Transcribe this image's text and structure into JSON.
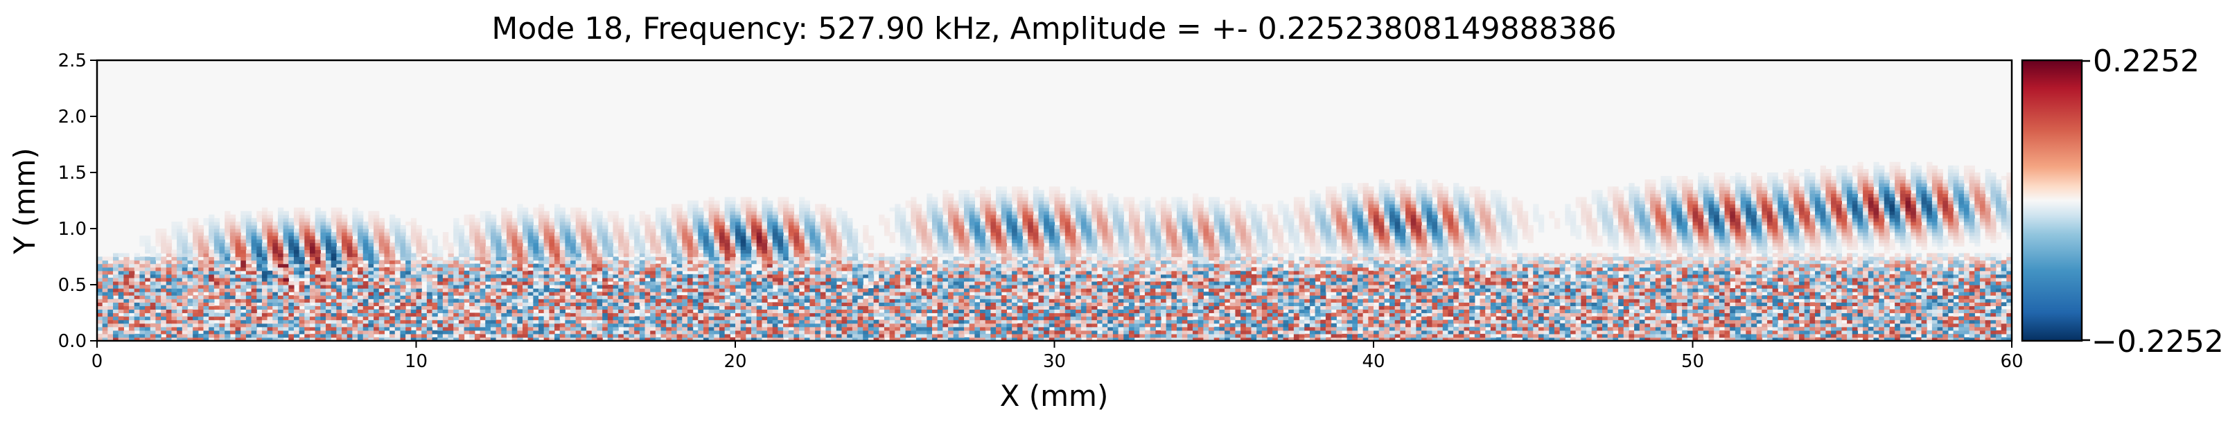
{
  "chart_data": {
    "type": "heatmap",
    "title": "Mode 18, Frequency: 527.90 kHz, Amplitude = +- 0.22523808149888386",
    "xlabel": "X (mm)",
    "ylabel": "Y (mm)",
    "xlim": [
      0,
      60
    ],
    "ylim": [
      0,
      2.5
    ],
    "x_ticks": [
      0,
      10,
      20,
      30,
      40,
      50,
      60
    ],
    "x_tick_labels": [
      "0",
      "10",
      "20",
      "30",
      "40",
      "50",
      "60"
    ],
    "y_ticks": [
      0.0,
      0.5,
      1.0,
      1.5,
      2.0,
      2.5
    ],
    "y_tick_labels": [
      "0.0",
      "0.5",
      "1.0",
      "1.5",
      "2.0",
      "2.5"
    ],
    "colormap": "RdBu_r",
    "colors": {
      "max": "#67001f",
      "high": "#d6604d",
      "mid": "#f7f7f7",
      "low": "#4393c3",
      "min": "#053061"
    },
    "colorbar": {
      "vmin": -0.2252,
      "vmax": 0.2252,
      "tick_labels": [
        "0.2252",
        "−0.2252"
      ]
    },
    "field": {
      "noise_layer_top_y": 0.6,
      "wave_packets": [
        {
          "x_center": 6.5,
          "y_center": 0.8,
          "half_width": 3.0,
          "amplitude": 0.2
        },
        {
          "x_center": 14.0,
          "y_center": 0.85,
          "half_width": 2.5,
          "amplitude": 0.12
        },
        {
          "x_center": 20.5,
          "y_center": 0.9,
          "half_width": 2.5,
          "amplitude": 0.2
        },
        {
          "x_center": 29.0,
          "y_center": 1.0,
          "half_width": 3.0,
          "amplitude": 0.16
        },
        {
          "x_center": 34.5,
          "y_center": 0.95,
          "half_width": 2.0,
          "amplitude": 0.1
        },
        {
          "x_center": 41.0,
          "y_center": 1.05,
          "half_width": 2.5,
          "amplitude": 0.18
        },
        {
          "x_center": 51.0,
          "y_center": 1.1,
          "half_width": 3.0,
          "amplitude": 0.18
        },
        {
          "x_center": 56.5,
          "y_center": 1.2,
          "half_width": 3.0,
          "amplitude": 0.2
        }
      ]
    }
  }
}
